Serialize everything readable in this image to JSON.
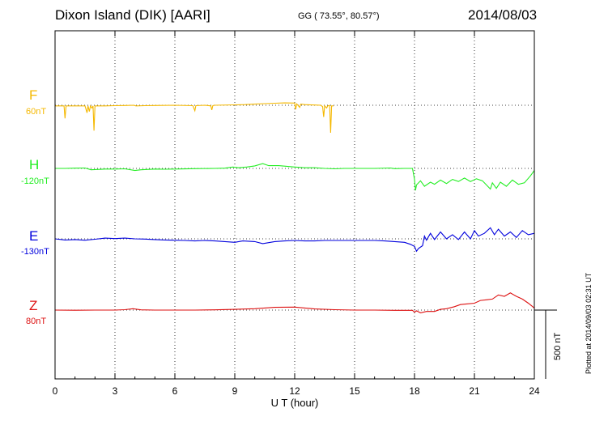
{
  "header": {
    "title": "Dixon Island (DIK)  [AARI]",
    "coords": "GG ( 73.55°,  80.57°)",
    "date": "2014/08/03",
    "plotted": "Plotted at 2014/09/03 02:31  UT"
  },
  "chart_data": {
    "type": "line",
    "xlabel": "U T (hour)",
    "xlim": [
      0,
      24
    ],
    "xticks": [
      0,
      3,
      6,
      9,
      12,
      15,
      18,
      21,
      24
    ],
    "grid": true,
    "scale_bar": {
      "label": "500 nT",
      "value_nT": 500
    },
    "series": [
      {
        "name": "F",
        "offset_label": "60nT",
        "color": "#f5b800",
        "t_end": 13.95,
        "points": [
          [
            0,
            -5
          ],
          [
            0.3,
            -5
          ],
          [
            0.45,
            -5
          ],
          [
            0.5,
            -95
          ],
          [
            0.55,
            -5
          ],
          [
            1.0,
            -5
          ],
          [
            1.1,
            -5
          ],
          [
            1.5,
            -5
          ],
          [
            1.6,
            -55
          ],
          [
            1.65,
            -5
          ],
          [
            1.72,
            -45
          ],
          [
            1.77,
            -5
          ],
          [
            1.85,
            -20
          ],
          [
            1.9,
            -5
          ],
          [
            1.95,
            -185
          ],
          [
            2.0,
            -5
          ],
          [
            2.5,
            -5
          ],
          [
            3.0,
            -3
          ],
          [
            3.5,
            -2
          ],
          [
            3.95,
            0
          ],
          [
            4.05,
            -5
          ],
          [
            4.5,
            -3
          ],
          [
            5.0,
            -2
          ],
          [
            6.0,
            0
          ],
          [
            6.9,
            -3
          ],
          [
            7.0,
            -40
          ],
          [
            7.05,
            -3
          ],
          [
            7.5,
            0
          ],
          [
            7.8,
            -5
          ],
          [
            7.85,
            -35
          ],
          [
            7.9,
            -3
          ],
          [
            8.0,
            0
          ],
          [
            9.0,
            3
          ],
          [
            9.5,
            5
          ],
          [
            10.0,
            8
          ],
          [
            10.5,
            12
          ],
          [
            11.0,
            15
          ],
          [
            11.5,
            17
          ],
          [
            12.0,
            16
          ],
          [
            12.05,
            -30
          ],
          [
            12.1,
            10
          ],
          [
            12.25,
            -15
          ],
          [
            12.3,
            8
          ],
          [
            12.5,
            5
          ],
          [
            13.0,
            2
          ],
          [
            13.3,
            0
          ],
          [
            13.4,
            -10
          ],
          [
            13.45,
            -85
          ],
          [
            13.5,
            -5
          ],
          [
            13.6,
            -20
          ],
          [
            13.65,
            -5
          ],
          [
            13.75,
            -1
          ],
          [
            13.8,
            -200
          ],
          [
            13.85,
            -5
          ],
          [
            13.95,
            -5
          ]
        ]
      },
      {
        "name": "H",
        "offset_label": "-120nT",
        "color": "#22ee22",
        "t_end": 24,
        "points": [
          [
            0,
            0
          ],
          [
            0.5,
            0
          ],
          [
            1.0,
            2
          ],
          [
            1.5,
            3
          ],
          [
            1.8,
            -10
          ],
          [
            2.5,
            -5
          ],
          [
            3.0,
            -5
          ],
          [
            3.5,
            -3
          ],
          [
            4.0,
            -15
          ],
          [
            4.3,
            -10
          ],
          [
            5.0,
            -5
          ],
          [
            5.5,
            -6
          ],
          [
            6.0,
            -5
          ],
          [
            7.0,
            -2
          ],
          [
            8.0,
            0
          ],
          [
            8.5,
            2
          ],
          [
            8.9,
            10
          ],
          [
            9.2,
            5
          ],
          [
            9.6,
            10
          ],
          [
            10.0,
            18
          ],
          [
            10.4,
            35
          ],
          [
            10.7,
            20
          ],
          [
            11.2,
            20
          ],
          [
            11.6,
            15
          ],
          [
            12.0,
            10
          ],
          [
            12.5,
            5
          ],
          [
            13.0,
            5
          ],
          [
            13.5,
            0
          ],
          [
            14.0,
            -3
          ],
          [
            14.5,
            0
          ],
          [
            15.0,
            0
          ],
          [
            16.0,
            0
          ],
          [
            16.8,
            3
          ],
          [
            17.0,
            -2
          ],
          [
            17.5,
            0
          ],
          [
            17.9,
            0
          ],
          [
            18.0,
            -80
          ],
          [
            18.05,
            -160
          ],
          [
            18.1,
            -120
          ],
          [
            18.3,
            -90
          ],
          [
            18.5,
            -130
          ],
          [
            18.8,
            -100
          ],
          [
            19.0,
            -115
          ],
          [
            19.3,
            -85
          ],
          [
            19.6,
            -110
          ],
          [
            19.9,
            -80
          ],
          [
            20.2,
            -95
          ],
          [
            20.5,
            -70
          ],
          [
            20.8,
            -95
          ],
          [
            21.1,
            -75
          ],
          [
            21.4,
            -90
          ],
          [
            21.6,
            -120
          ],
          [
            21.8,
            -150
          ],
          [
            21.9,
            -105
          ],
          [
            22.1,
            -145
          ],
          [
            22.3,
            -100
          ],
          [
            22.6,
            -130
          ],
          [
            22.9,
            -85
          ],
          [
            23.2,
            -115
          ],
          [
            23.5,
            -105
          ],
          [
            23.8,
            -55
          ],
          [
            24.0,
            -15
          ]
        ]
      },
      {
        "name": "E",
        "offset_label": "-130nT",
        "color": "#0000dd",
        "t_end": 24,
        "points": [
          [
            0,
            0
          ],
          [
            0.5,
            -8
          ],
          [
            1.0,
            -5
          ],
          [
            1.5,
            -10
          ],
          [
            2.0,
            -3
          ],
          [
            2.5,
            5
          ],
          [
            3.0,
            2
          ],
          [
            3.5,
            5
          ],
          [
            4.0,
            0
          ],
          [
            4.5,
            -2
          ],
          [
            5.0,
            -5
          ],
          [
            5.5,
            -8
          ],
          [
            6.0,
            -10
          ],
          [
            6.5,
            -12
          ],
          [
            7.0,
            -15
          ],
          [
            7.5,
            -12
          ],
          [
            8.0,
            -15
          ],
          [
            8.5,
            -20
          ],
          [
            9.0,
            -25
          ],
          [
            9.4,
            -15
          ],
          [
            10.0,
            -20
          ],
          [
            10.4,
            -35
          ],
          [
            11.0,
            -20
          ],
          [
            11.5,
            -15
          ],
          [
            12.0,
            -12
          ],
          [
            12.5,
            -15
          ],
          [
            13.0,
            -15
          ],
          [
            13.5,
            -12
          ],
          [
            14.0,
            -12
          ],
          [
            15.0,
            -12
          ],
          [
            16.0,
            -12
          ],
          [
            16.5,
            -15
          ],
          [
            17.0,
            -20
          ],
          [
            17.5,
            -25
          ],
          [
            17.8,
            -40
          ],
          [
            18.0,
            -55
          ],
          [
            18.1,
            -90
          ],
          [
            18.2,
            -70
          ],
          [
            18.4,
            -50
          ],
          [
            18.5,
            20
          ],
          [
            18.6,
            -10
          ],
          [
            18.8,
            40
          ],
          [
            19.0,
            -5
          ],
          [
            19.3,
            50
          ],
          [
            19.6,
            0
          ],
          [
            19.9,
            30
          ],
          [
            20.2,
            -5
          ],
          [
            20.5,
            50
          ],
          [
            20.8,
            0
          ],
          [
            21.0,
            60
          ],
          [
            21.2,
            20
          ],
          [
            21.5,
            40
          ],
          [
            21.8,
            80
          ],
          [
            22.0,
            30
          ],
          [
            22.2,
            70
          ],
          [
            22.5,
            20
          ],
          [
            22.8,
            50
          ],
          [
            23.1,
            10
          ],
          [
            23.4,
            60
          ],
          [
            23.7,
            30
          ],
          [
            24.0,
            40
          ]
        ]
      },
      {
        "name": "Z",
        "offset_label": "80nT",
        "color": "#dd1111",
        "t_end": 24,
        "points": [
          [
            0,
            0
          ],
          [
            1.0,
            -1
          ],
          [
            2.0,
            0
          ],
          [
            3.0,
            0
          ],
          [
            3.5,
            3
          ],
          [
            3.9,
            10
          ],
          [
            4.3,
            2
          ],
          [
            5.0,
            0
          ],
          [
            6.0,
            0
          ],
          [
            7.0,
            0
          ],
          [
            8.0,
            2
          ],
          [
            9.0,
            5
          ],
          [
            10.0,
            10
          ],
          [
            11.0,
            20
          ],
          [
            12.0,
            22
          ],
          [
            12.5,
            15
          ],
          [
            13.0,
            8
          ],
          [
            14.0,
            3
          ],
          [
            15.0,
            0
          ],
          [
            16.0,
            0
          ],
          [
            17.0,
            -2
          ],
          [
            17.9,
            -2
          ],
          [
            18.0,
            -15
          ],
          [
            18.1,
            -5
          ],
          [
            18.3,
            -20
          ],
          [
            18.6,
            -10
          ],
          [
            19.0,
            -10
          ],
          [
            19.3,
            5
          ],
          [
            19.6,
            10
          ],
          [
            20.0,
            25
          ],
          [
            20.3,
            40
          ],
          [
            20.6,
            45
          ],
          [
            21.0,
            50
          ],
          [
            21.3,
            70
          ],
          [
            21.6,
            75
          ],
          [
            21.9,
            80
          ],
          [
            22.2,
            110
          ],
          [
            22.5,
            100
          ],
          [
            22.8,
            125
          ],
          [
            23.1,
            100
          ],
          [
            23.4,
            80
          ],
          [
            23.7,
            50
          ],
          [
            24.0,
            15
          ]
        ]
      }
    ]
  }
}
